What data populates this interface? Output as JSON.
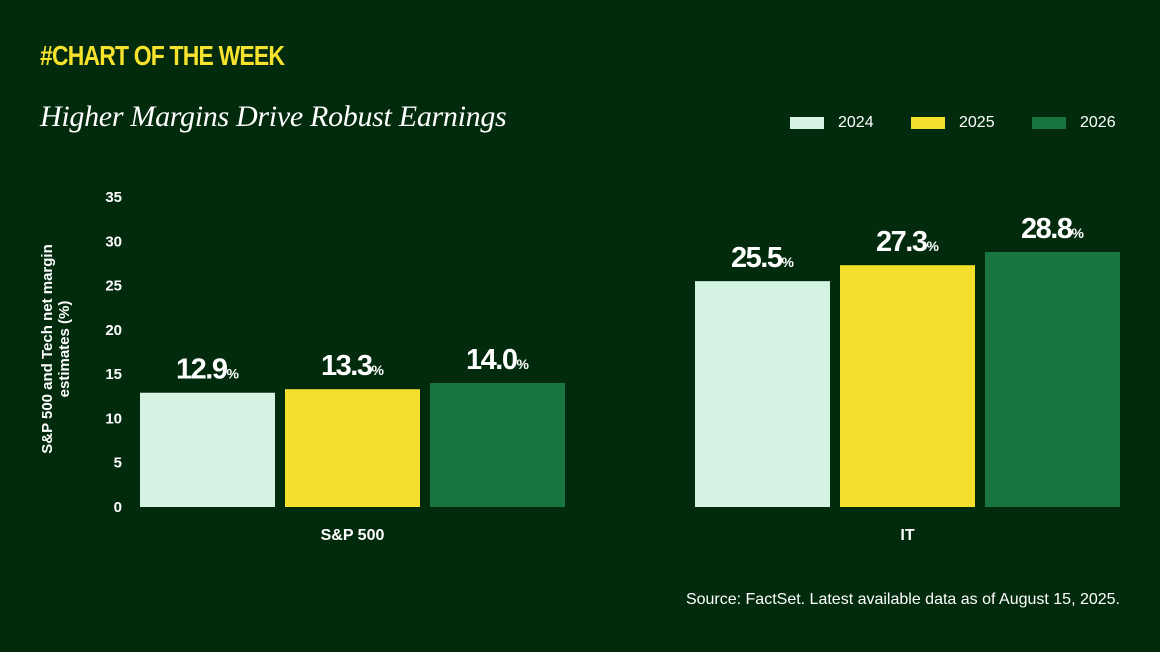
{
  "header": {
    "kicker": "#CHART OF THE WEEK",
    "title": "Higher Margins Drive Robust Earnings"
  },
  "legend": [
    {
      "label": "2024",
      "color": "#D4F3E2"
    },
    {
      "label": "2025",
      "color": "#F4E02C"
    },
    {
      "label": "2026",
      "color": "#197540"
    }
  ],
  "source": "Source: FactSet. Latest available data as of August 15, 2025.",
  "chart_data": {
    "type": "bar",
    "categories": [
      "S&P 500",
      "IT"
    ],
    "series": [
      {
        "name": "2024",
        "values": [
          12.9,
          25.5
        ],
        "labels": [
          "12.9",
          "25.5"
        ],
        "color": "#D4F3E2"
      },
      {
        "name": "2025",
        "values": [
          13.3,
          27.3
        ],
        "labels": [
          "13.3",
          "27.3"
        ],
        "color": "#F4E02C"
      },
      {
        "name": "2026",
        "values": [
          14.0,
          28.8
        ],
        "labels": [
          "14.0",
          "28.8"
        ],
        "color": "#197540"
      }
    ],
    "label_suffix": "%",
    "ylabel": "S&P 500 and Tech net margin estimates (%)",
    "yticks": [
      "0",
      "5",
      "10",
      "15",
      "20",
      "25",
      "30",
      "35"
    ],
    "ylim": [
      0,
      35
    ],
    "grid": false,
    "legend_position": "top-right"
  }
}
